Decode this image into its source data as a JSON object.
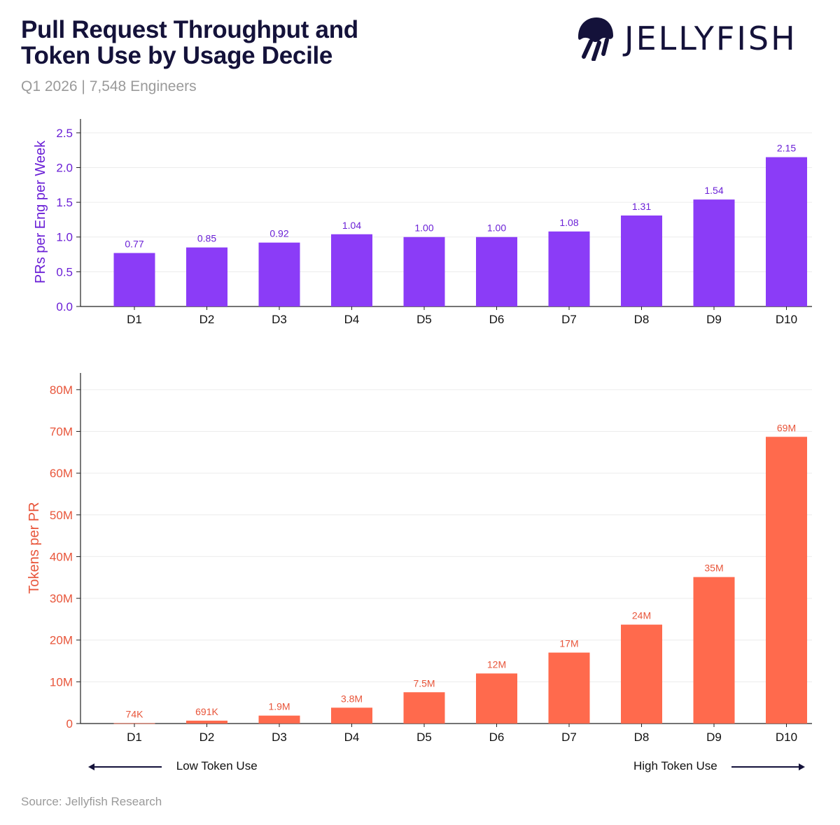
{
  "header": {
    "title_line1": "Pull Request Throughput and",
    "title_line2": "Token Use by Usage Decile",
    "subtitle": "Q1 2026 | 7,548 Engineers",
    "logo_text": "JELLYFISH"
  },
  "footer": {
    "low_label": "Low Token Use",
    "high_label": "High Token Use",
    "source": "Source: Jellyfish Research"
  },
  "colors": {
    "purple": "#8b3cf7",
    "purple_text": "#6a1fd6",
    "orange": "#ff6a4d",
    "orange_text": "#e8553a",
    "navy": "#14123a"
  },
  "chart_data": [
    {
      "type": "bar",
      "title": "",
      "xlabel": "",
      "ylabel": "PRs per Eng per Week",
      "categories": [
        "D1",
        "D2",
        "D3",
        "D4",
        "D5",
        "D6",
        "D7",
        "D8",
        "D9",
        "D10"
      ],
      "values": [
        0.77,
        0.85,
        0.92,
        1.04,
        1.0,
        1.0,
        1.08,
        1.31,
        1.54,
        2.15
      ],
      "data_labels": [
        "0.77",
        "0.85",
        "0.92",
        "1.04",
        "1.00",
        "1.00",
        "1.08",
        "1.31",
        "1.54",
        "2.15"
      ],
      "yticks": [
        0,
        0.5,
        1.0,
        1.5,
        2.0,
        2.5
      ],
      "ytick_labels": [
        "0.0",
        "0.5",
        "1.0",
        "1.5",
        "2.0",
        "2.5"
      ],
      "ylim": [
        0,
        2.7
      ],
      "grid": true,
      "color": "#8b3cf7"
    },
    {
      "type": "bar",
      "title": "",
      "xlabel": "",
      "ylabel": "Tokens per PR",
      "categories": [
        "D1",
        "D2",
        "D3",
        "D4",
        "D5",
        "D6",
        "D7",
        "D8",
        "D9",
        "D10"
      ],
      "values": [
        74000,
        691000,
        1900000,
        3800000,
        7500000,
        12000000,
        17000000,
        23700000,
        35100000,
        68700000
      ],
      "data_labels": [
        "74K",
        "691K",
        "1.9M",
        "3.8M",
        "7.5M",
        "12M",
        "17M",
        "24M",
        "35M",
        "69M"
      ],
      "yticks": [
        0,
        10000000,
        20000000,
        30000000,
        40000000,
        50000000,
        60000000,
        70000000,
        80000000
      ],
      "ytick_labels": [
        "0",
        "10M",
        "20M",
        "30M",
        "40M",
        "50M",
        "60M",
        "70M",
        "80M"
      ],
      "ylim": [
        0,
        84000000
      ],
      "grid": true,
      "color": "#ff6a4d"
    }
  ]
}
